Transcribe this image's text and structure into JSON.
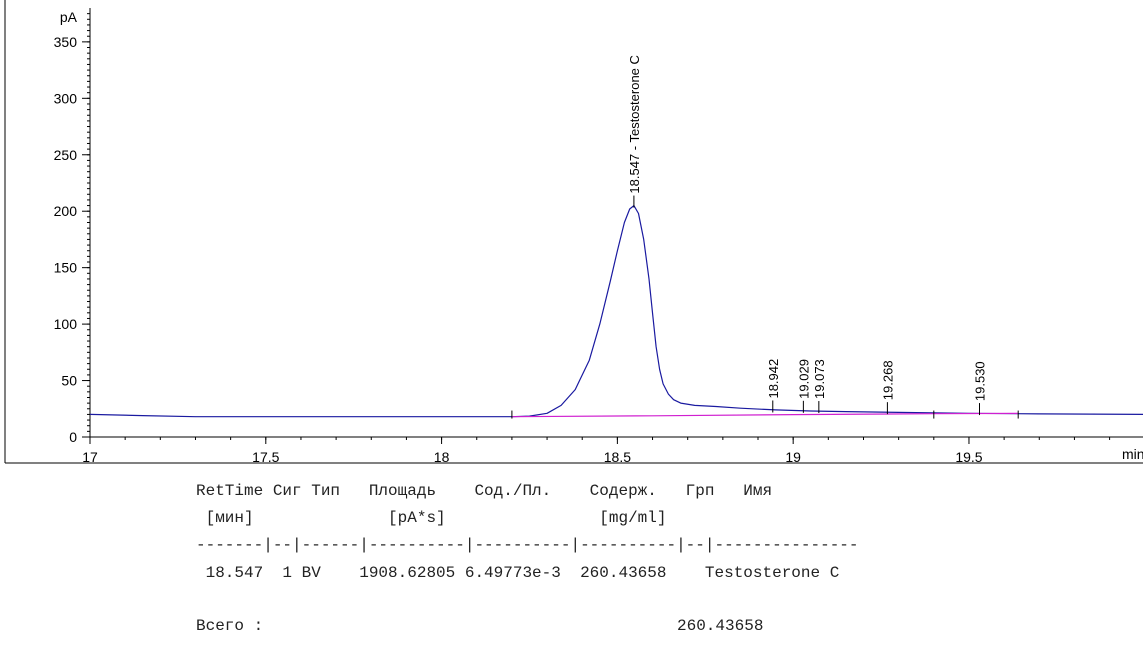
{
  "chart_data": {
    "type": "line",
    "ylabel": "pA",
    "xlabel": "min",
    "xlim": [
      17,
      19.995
    ],
    "ylim": [
      0,
      380
    ],
    "x_ticks": [
      17,
      17.5,
      18,
      18.5,
      19,
      19.5
    ],
    "x_tick_labels": [
      "17",
      "17.5",
      "18",
      "18.5",
      "19",
      "19.5"
    ],
    "y_ticks": [
      0,
      50,
      100,
      150,
      200,
      250,
      300,
      350
    ],
    "y_tick_labels": [
      "0",
      "50",
      "100",
      "150",
      "200",
      "250",
      "300",
      "350"
    ],
    "series": [
      {
        "color": "#1a1aa0",
        "x": [
          17.0,
          17.15,
          17.3,
          18.0,
          18.2,
          18.25,
          18.3,
          18.34,
          18.38,
          18.42,
          18.45,
          18.48,
          18.5,
          18.52,
          18.535,
          18.547,
          18.56,
          18.575,
          18.59,
          18.6,
          18.61,
          18.62,
          18.63,
          18.645,
          18.66,
          18.68,
          18.72,
          18.78,
          18.85,
          18.95,
          19.05,
          19.15,
          19.3,
          19.5,
          19.7,
          19.995
        ],
        "y": [
          20,
          19,
          18,
          18,
          18,
          18.5,
          21,
          28,
          42,
          68,
          100,
          138,
          165,
          190,
          202,
          205,
          198,
          175,
          140,
          110,
          80,
          60,
          47,
          38,
          33,
          30,
          28,
          27,
          25.5,
          24,
          23,
          22.5,
          21.8,
          21,
          20.5,
          20
        ]
      },
      {
        "color": "#d020d0",
        "x": [
          18.2,
          18.6,
          19.0,
          19.4,
          19.64
        ],
        "y": [
          18,
          18.8,
          19.8,
          20.6,
          20.9
        ]
      }
    ],
    "peaks": [
      {
        "x": 18.547,
        "y": 205,
        "label": "18.547 -  Testosterone C"
      },
      {
        "x": 18.942,
        "y": 23.5,
        "label": "18.942"
      },
      {
        "x": 19.029,
        "y": 23.2,
        "label": "19.029"
      },
      {
        "x": 19.073,
        "y": 23.0,
        "label": "19.073"
      },
      {
        "x": 19.268,
        "y": 22.0,
        "label": "19.268"
      },
      {
        "x": 19.53,
        "y": 21.2,
        "label": "19.530"
      }
    ],
    "baseline_marks": [
      18.2,
      19.4,
      19.64
    ]
  },
  "report": {
    "header1": "RetTime Сиг Тип   Площадь    Сод./Пл.    Содерж.   Грп   Имя",
    "header2": " [мин]              [pA*s]                [mg/ml]",
    "separator": "-------|--|------|----------|----------|----------|--|---------------",
    "row": " 18.547  1 BV    1908.62805 6.49773e-3  260.43658    Testosterone C",
    "total_label": "Всего :",
    "total_value": "260.43658"
  }
}
